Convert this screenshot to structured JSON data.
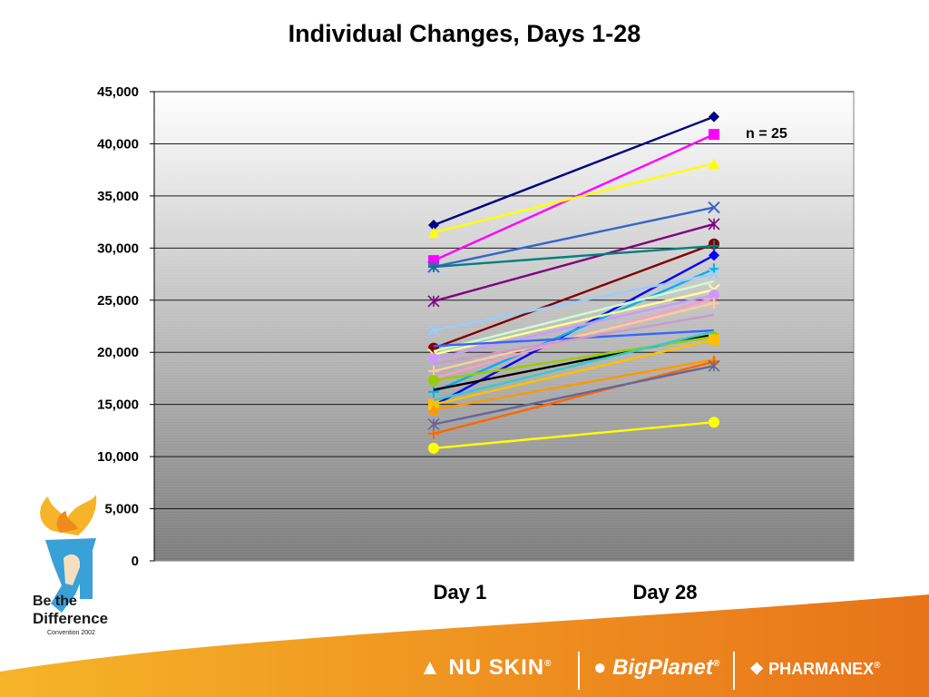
{
  "slide": {
    "title": "Individual Changes, Days 1-28",
    "annotation": "n = 25"
  },
  "branding": {
    "logo_line1": "Be the",
    "logo_line2": "Difference",
    "logo_line3": "Convention 2002",
    "brand1": "NU SKIN",
    "brand2": "BigPlanet",
    "brand3": "PHARMANEX",
    "registered_mark": "®",
    "colors": {
      "orange": "#f08a1c",
      "yellow": "#f6b428",
      "blue": "#3aa0d8"
    }
  },
  "chart_data": {
    "type": "line",
    "title": "Individual Changes, Days 1-28",
    "xlabel": "",
    "ylabel": "",
    "x": [
      "Day 1",
      "Day 28"
    ],
    "ylim": [
      0,
      45000
    ],
    "yticks": [
      "0",
      "5,000",
      "10,000",
      "15,000",
      "20,000",
      "25,000",
      "30,000",
      "35,000",
      "40,000",
      "45,000"
    ],
    "grid": true,
    "series": [
      {
        "values": [
          32200,
          42600
        ],
        "color": "#000080",
        "marker": "diamond"
      },
      {
        "values": [
          28800,
          40900
        ],
        "color": "#ff00ff",
        "marker": "square"
      },
      {
        "values": [
          31500,
          38100
        ],
        "color": "#ffff00",
        "marker": "triangle"
      },
      {
        "values": [
          28200,
          33900
        ],
        "color": "#3366cc",
        "marker": "x"
      },
      {
        "values": [
          24900,
          32300
        ],
        "color": "#800080",
        "marker": "star"
      },
      {
        "values": [
          20400,
          30400
        ],
        "color": "#800000",
        "marker": "circle"
      },
      {
        "values": [
          28200,
          30200
        ],
        "color": "#008080",
        "marker": "plus"
      },
      {
        "values": [
          14900,
          29300
        ],
        "color": "#0000ff",
        "marker": "diamond"
      },
      {
        "values": [
          16200,
          28000
        ],
        "color": "#00b0f0",
        "marker": "plus"
      },
      {
        "values": [
          22100,
          27500
        ],
        "color": "#99ccff",
        "marker": "x"
      },
      {
        "values": [
          20100,
          26800
        ],
        "color": "#ccffcc",
        "marker": "none"
      },
      {
        "values": [
          19800,
          26000
        ],
        "color": "#ffff99",
        "marker": "x"
      },
      {
        "values": [
          19400,
          25500
        ],
        "color": "#cc99ff",
        "marker": "circle"
      },
      {
        "values": [
          17500,
          25200
        ],
        "color": "#ff99cc",
        "marker": "none"
      },
      {
        "values": [
          18200,
          24700
        ],
        "color": "#ffcc99",
        "marker": "plus"
      },
      {
        "values": [
          20600,
          22100
        ],
        "color": "#3366ff",
        "marker": "none"
      },
      {
        "values": [
          16400,
          21700
        ],
        "color": "#000000",
        "marker": "none"
      },
      {
        "values": [
          17300,
          21500
        ],
        "color": "#99cc00",
        "marker": "circle"
      },
      {
        "values": [
          15000,
          21200
        ],
        "color": "#ffc000",
        "marker": "square"
      },
      {
        "values": [
          14500,
          19300
        ],
        "color": "#ff9900",
        "marker": "triangle"
      },
      {
        "values": [
          12200,
          19100
        ],
        "color": "#ff6600",
        "marker": "plus"
      },
      {
        "values": [
          13100,
          18700
        ],
        "color": "#666699",
        "marker": "star"
      },
      {
        "values": [
          10800,
          13300
        ],
        "color": "#ffff00",
        "marker": "circle"
      },
      {
        "values": [
          15400,
          22000
        ],
        "color": "#33cccc",
        "marker": "none"
      },
      {
        "values": [
          18900,
          23600
        ],
        "color": "#cc99cc",
        "marker": "none"
      }
    ]
  }
}
